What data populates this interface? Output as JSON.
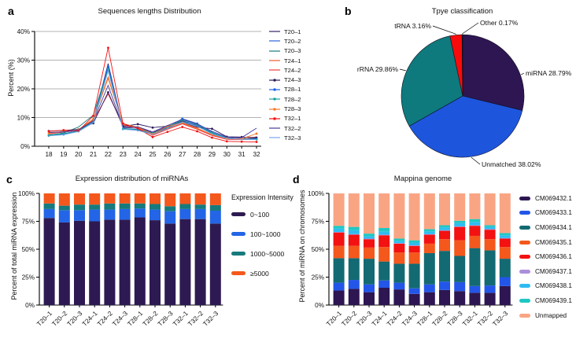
{
  "figure": {
    "panel_letters": {
      "a": "a",
      "b": "b",
      "c": "c",
      "d": "d"
    }
  },
  "chart_data": [
    {
      "type": "line",
      "panel": "a",
      "title": "Sequences lengths Distribution",
      "xlabel": "",
      "ylabel": "Percent (%)",
      "ylim": [
        0,
        40
      ],
      "yticks": [
        "0%",
        "10%",
        "20%",
        "30%",
        "40%"
      ],
      "ytick_values": [
        0,
        10,
        20,
        30,
        40
      ],
      "grid": true,
      "legend_position": "right",
      "x": [
        18,
        19,
        20,
        21,
        22,
        23,
        24,
        25,
        26,
        27,
        28,
        29,
        30,
        31,
        32
      ],
      "series": [
        {
          "name": "T20–1",
          "color": "#352269",
          "marker": false,
          "values": [
            4.6,
            4.9,
            5.6,
            8.6,
            28.8,
            6.4,
            6.6,
            4.7,
            6.9,
            8.9,
            7.2,
            4.7,
            3.0,
            2.7,
            2.8
          ]
        },
        {
          "name": "T20–2",
          "color": "#2b62dd",
          "marker": false,
          "values": [
            4.0,
            4.4,
            5.4,
            8.9,
            28.2,
            6.1,
            6.0,
            4.3,
            6.4,
            8.7,
            7.4,
            4.4,
            2.8,
            2.5,
            2.6
          ]
        },
        {
          "name": "T20–3",
          "color": "#157a7a",
          "marker": false,
          "values": [
            3.9,
            4.6,
            6.7,
            10.8,
            27.2,
            6.2,
            5.7,
            4.3,
            6.5,
            8.6,
            6.9,
            4.5,
            2.9,
            2.5,
            2.4
          ]
        },
        {
          "name": "T24–1",
          "color": "#f4582a",
          "marker": false,
          "values": [
            4.4,
            5.1,
            5.6,
            9.3,
            24.2,
            7.3,
            6.3,
            4.0,
            6.1,
            8.0,
            6.1,
            3.9,
            2.6,
            2.4,
            3.3
          ]
        },
        {
          "name": "T24–2",
          "color": "#ef3b3b",
          "marker": false,
          "values": [
            4.3,
            5.0,
            5.5,
            9.0,
            18.2,
            7.6,
            6.4,
            3.8,
            5.9,
            7.8,
            5.9,
            3.7,
            2.4,
            2.3,
            2.4
          ]
        },
        {
          "name": "T24–3",
          "color": "#2e1a5e",
          "marker": true,
          "values": [
            5.3,
            5.5,
            5.9,
            8.0,
            18.8,
            6.9,
            7.7,
            6.5,
            7.0,
            8.3,
            6.6,
            6.1,
            3.3,
            3.2,
            3.0
          ]
        },
        {
          "name": "T28–1",
          "color": "#1e62e6",
          "marker": true,
          "values": [
            3.7,
            4.1,
            5.2,
            8.4,
            27.8,
            6.0,
            5.6,
            4.4,
            6.6,
            9.6,
            7.9,
            4.9,
            2.9,
            2.6,
            2.5
          ]
        },
        {
          "name": "T28–2",
          "color": "#18a2a2",
          "marker": true,
          "values": [
            3.8,
            4.3,
            5.3,
            8.6,
            26.9,
            6.1,
            5.8,
            4.5,
            6.7,
            9.2,
            7.6,
            4.7,
            2.8,
            2.5,
            2.4
          ]
        },
        {
          "name": "T28–3",
          "color": "#f47a2e",
          "marker": true,
          "values": [
            4.5,
            5.2,
            5.8,
            9.5,
            23.6,
            7.9,
            6.6,
            4.2,
            6.9,
            8.2,
            6.3,
            4.1,
            2.7,
            2.6,
            4.4
          ]
        },
        {
          "name": "T32–1",
          "color": "#f31111",
          "marker": true,
          "values": [
            5.2,
            5.6,
            5.3,
            10.6,
            34.3,
            7.9,
            6.2,
            3.2,
            5.0,
            6.7,
            5.2,
            3.0,
            1.7,
            1.6,
            1.5
          ]
        },
        {
          "name": "T32–2",
          "color": "#4a3a9e",
          "marker": false,
          "values": [
            4.8,
            5.0,
            5.7,
            8.8,
            21.2,
            6.6,
            6.8,
            5.0,
            7.2,
            9.4,
            7.8,
            5.2,
            3.2,
            3.0,
            6.3
          ]
        },
        {
          "name": "T32–3",
          "color": "#7aa8e8",
          "marker": false,
          "values": [
            3.6,
            4.0,
            5.1,
            8.2,
            26.3,
            5.9,
            5.5,
            4.1,
            6.2,
            8.4,
            7.0,
            4.3,
            2.7,
            2.4,
            2.3
          ]
        }
      ]
    },
    {
      "type": "pie",
      "panel": "b",
      "title": "Tpye classification",
      "start_angle_deg": -90,
      "clockwise": true,
      "slices": [
        {
          "name": "miRNA",
          "value": 28.79,
          "color": "#2d1652",
          "label": "miRNA 28.79%"
        },
        {
          "name": "Unmatched",
          "value": 38.02,
          "color": "#1d55dd",
          "label": "Unmatched 38.02%"
        },
        {
          "name": "rRNA",
          "value": 29.86,
          "color": "#0e7a7e",
          "label": "rRNA 29.86%"
        },
        {
          "name": "tRNA",
          "value": 3.16,
          "color": "#fa0b0b",
          "label": "tRNA 3.16%"
        },
        {
          "name": "Other",
          "value": 0.17,
          "color": "#221a38",
          "label": "Other 0.17%"
        }
      ]
    },
    {
      "type": "bar",
      "stacked": true,
      "panel": "c",
      "title": "Expression distribution of miRNAs",
      "ylabel": "Percent of total miRNA expression",
      "yticks": [
        "0%",
        "25%",
        "50%",
        "75%",
        "100%"
      ],
      "ytick_values": [
        0,
        25,
        50,
        75,
        100
      ],
      "ylim": [
        0,
        100
      ],
      "grid": false,
      "legend_title": "Expression Intensity",
      "legend_position": "right",
      "categories": [
        "T20–1",
        "T20–2",
        "T20–3",
        "T24–1",
        "T24–2",
        "T24–3",
        "T28–1",
        "T28–2",
        "T28–3",
        "T32–1",
        "T32–2",
        "T32–3"
      ],
      "series": [
        {
          "name": "0~100",
          "color": "#2e1a52",
          "values": [
            78,
            74,
            75.5,
            75,
            76.5,
            76.5,
            78.5,
            76,
            73,
            77,
            77,
            73
          ]
        },
        {
          "name": "100~1000",
          "color": "#2365e6",
          "values": [
            8,
            11,
            9.5,
            10.5,
            9,
            9.5,
            8,
            9.5,
            11,
            9,
            9,
            11.5
          ]
        },
        {
          "name": "1000~5000",
          "color": "#177a7c",
          "values": [
            5,
            4,
            5,
            4.5,
            5.5,
            5,
            4.5,
            5,
            4.5,
            4.5,
            4,
            5
          ]
        },
        {
          "name": "≥5000",
          "color": "#f4581c",
          "values": [
            9,
            11,
            10,
            10,
            9,
            9,
            9,
            9.5,
            11.5,
            9.5,
            10,
            10.5
          ]
        }
      ]
    },
    {
      "type": "bar",
      "stacked": true,
      "panel": "d",
      "title": "Mappina genome",
      "ylabel": "Percent of miRNA on chromosomes",
      "yticks": [
        "0%",
        "25%",
        "50%",
        "75%",
        "100%"
      ],
      "ytick_values": [
        0,
        25,
        50,
        75,
        100
      ],
      "ylim": [
        0,
        100
      ],
      "grid": false,
      "legend_position": "right",
      "categories": [
        "T20–1",
        "T20–2",
        "T20–3",
        "T24–1",
        "T24–2",
        "T24–3",
        "T28–1",
        "T28–2",
        "T28–3",
        "T32–1",
        "T32–2",
        "T32–3"
      ],
      "series": [
        {
          "name": "CM069432.1",
          "color": "#2d1652",
          "values": [
            13,
            14.5,
            11.5,
            15.5,
            14,
            10,
            11.5,
            13.5,
            12.5,
            11,
            11,
            17
          ]
        },
        {
          "name": "CM069433.1",
          "color": "#2356e8",
          "values": [
            7,
            8,
            7,
            6.5,
            6,
            5,
            7,
            7.5,
            8,
            6,
            6.5,
            8
          ]
        },
        {
          "name": "CM069434.1",
          "color": "#136a72",
          "values": [
            22,
            19.5,
            23,
            17,
            17,
            22,
            28,
            27.5,
            23.5,
            34,
            31.5,
            16.5
          ]
        },
        {
          "name": "CM069435.1",
          "color": "#f4581c",
          "values": [
            11,
            11,
            10,
            13,
            10,
            10,
            8.5,
            10.5,
            14,
            11,
            10,
            10.5
          ]
        },
        {
          "name": "CM069436.1",
          "color": "#f31111",
          "values": [
            12,
            10,
            7.5,
            10.5,
            8,
            6,
            8,
            7.5,
            12,
            9,
            8.5,
            7.5
          ]
        },
        {
          "name": "CM069437.1",
          "color": "#ab8fdc",
          "values": [
            0.5,
            0.5,
            0.5,
            0.5,
            0.5,
            0.5,
            0.5,
            0.5,
            0.5,
            0.5,
            0.5,
            0.5
          ]
        },
        {
          "name": "CM069438.1",
          "color": "#2ebcf0",
          "values": [
            3,
            3.5,
            2,
            3,
            2,
            2.5,
            2.5,
            2.5,
            3,
            3,
            2,
            2.5
          ]
        },
        {
          "name": "CM069439.1",
          "color": "#1fc7c2",
          "values": [
            2.5,
            3,
            2.5,
            3,
            2,
            2,
            2,
            2,
            2,
            2.5,
            1.5,
            2
          ]
        },
        {
          "name": "Unmapped",
          "color": "#f9a584",
          "values": [
            29,
            30,
            36,
            31,
            40.5,
            42,
            32,
            28.5,
            24.5,
            23,
            28.5,
            35.5
          ]
        }
      ]
    }
  ]
}
